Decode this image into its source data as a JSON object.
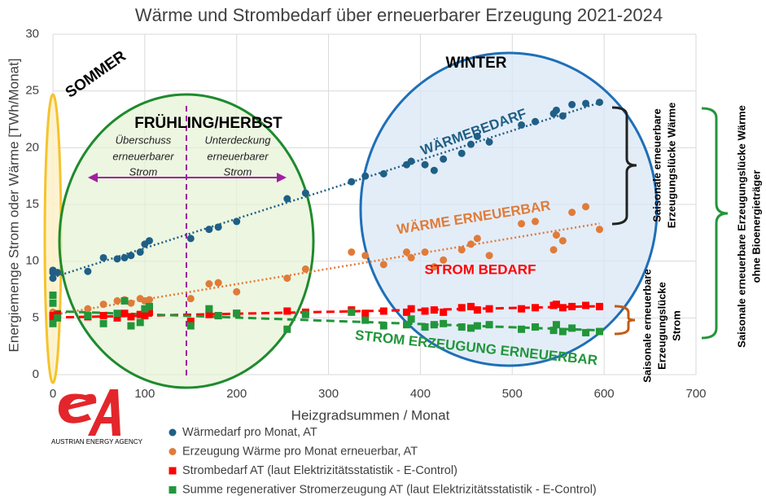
{
  "chart_data": {
    "type": "scatter",
    "title": "Wärme und Strombedarf über erneuerbarer Erzeugung 2021-2024",
    "xlabel": "Heizgradsummen / Monat",
    "ylabel": "Energiemenge Strom oder Wärme  [TWh/Monat]",
    "xlim": [
      0,
      700
    ],
    "xticks": [
      0,
      100,
      200,
      300,
      400,
      500,
      600,
      700
    ],
    "ylim": [
      0,
      30
    ],
    "yticks": [
      0,
      5,
      10,
      15,
      20,
      25,
      30
    ],
    "grid": true,
    "x": [
      0,
      0,
      0,
      5,
      38,
      55,
      70,
      78,
      85,
      95,
      100,
      105,
      150,
      170,
      180,
      200,
      255,
      275,
      325,
      340,
      360,
      385,
      390,
      405,
      415,
      425,
      445,
      455,
      462,
      475,
      510,
      525,
      545,
      548,
      555,
      565,
      580,
      595
    ],
    "series": [
      {
        "name": "Wärmedarf pro Monat, AT",
        "color": "#1f5f86",
        "marker": "circle",
        "trendline": "dotted",
        "values": [
          8.5,
          9,
          9.2,
          9,
          9.1,
          10.3,
          10.2,
          10.3,
          10.5,
          10.8,
          11.5,
          11.8,
          12,
          12.8,
          13,
          13.5,
          15.5,
          16,
          17,
          17.5,
          17.7,
          18.5,
          18.8,
          18.5,
          18,
          19,
          19.5,
          20.3,
          21,
          20.5,
          22,
          22.3,
          23,
          23.3,
          22.8,
          23.8,
          23.9,
          24
        ]
      },
      {
        "name": "Erzeugung Wärme pro Monat erneuerbar, AT",
        "color": "#e07b39",
        "marker": "circle",
        "trendline": "dotted",
        "values": [
          5.5,
          5,
          5.3,
          5.2,
          5.8,
          6.2,
          6.5,
          6.6,
          6.3,
          6.7,
          6.5,
          6.6,
          6.7,
          8,
          8.1,
          7.3,
          8.5,
          9.3,
          10.8,
          10.5,
          9.7,
          10.8,
          10.3,
          10.8,
          9.5,
          10.1,
          11,
          11.5,
          12,
          10.5,
          13.3,
          13.5,
          11,
          12.3,
          11.8,
          14.3,
          14.8,
          12.8
        ]
      },
      {
        "name": "Strombedarf AT (laut Elektrizitätsstatistik - E-Control)",
        "color": "#ff0000",
        "marker": "square",
        "trendline": "dashed",
        "values": [
          5,
          5.2,
          4.8,
          5.3,
          5.1,
          5.2,
          5,
          5.4,
          5.1,
          5.3,
          5.2,
          5.5,
          4.7,
          5.3,
          5.2,
          5.4,
          5.6,
          5.5,
          5.7,
          5.4,
          5.6,
          5.5,
          5.8,
          5.6,
          5.7,
          5.5,
          5.9,
          6,
          5.7,
          5.8,
          5.8,
          5.9,
          6.1,
          6.2,
          5.9,
          6,
          6.1,
          6
        ]
      },
      {
        "name": "Summe regenerativer Stromerzeugung AT (laut Elektrizitätsstatistik - E-Control)",
        "color": "#22963a",
        "marker": "square",
        "trendline": "dashed",
        "values": [
          7,
          4.5,
          6.3,
          5,
          5.2,
          4.5,
          5.4,
          6.5,
          4.3,
          4.6,
          5.8,
          6,
          4.3,
          5.8,
          5.2,
          5.4,
          4,
          5.3,
          5.5,
          4.8,
          4.3,
          4.4,
          4.9,
          4.2,
          4.4,
          4.5,
          4.2,
          4.1,
          4.3,
          4.4,
          4,
          4.2,
          3.9,
          4.4,
          3.8,
          4.1,
          3.7,
          3.8
        ]
      }
    ],
    "annotations": {
      "sommer": "SOMMER",
      "fruehling": "FRÜHLING/HERBST",
      "winter": "WINTER",
      "ueberschuss": [
        "Überschuss",
        "erneuerbarer",
        "Strom"
      ],
      "unterdeckung": [
        "Unterdeckung",
        "erneuerbarer",
        "Strom"
      ],
      "waermebedarf": "WÄRMEBEDARF",
      "waerme_erneuerbar": "WÄRME ERNEUERBAR",
      "strom_bedarf": "STROM BEDARF",
      "strom_erzeugung": "STROM ERZEUGUNG ERNEUERBAR",
      "luecke_waerme": [
        "Saisonale erneuerbare",
        "Erzeugungslücke Wärme"
      ],
      "luecke_strom": [
        "Saisonale erneuerbare",
        "Erzeugungslücke",
        "Strom"
      ],
      "luecke_gesamt": [
        "Saisonale erneuerbare Erzeugungslücke Wärme",
        "ohne Bioenergieträger"
      ],
      "logo": "AUSTRIAN ENERGY AGENCY"
    }
  }
}
